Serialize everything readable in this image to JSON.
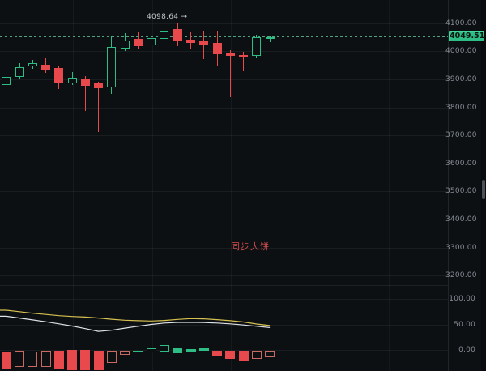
{
  "chart": {
    "annotation": "同步大饼",
    "high_label": "4098.64 →",
    "last_price": "4049.51",
    "price_axis_ticks": [
      "4100.00",
      "4000.00",
      "3900.00",
      "3800.00",
      "3700.00",
      "3600.00",
      "3500.00",
      "3400.00",
      "3300.00",
      "3200.00"
    ],
    "volume_axis_ticks": [
      "100.00",
      "50.00",
      "0.00"
    ],
    "colors": {
      "background": "#0d1013",
      "up": "#2ebd85",
      "down": "#e8494d",
      "ma_fast": "#d6c150",
      "ma_slow": "#dfe2e6",
      "annotation_text": "#d14c4c",
      "axis_text": "#878d96",
      "badge_bg": "#2ebd85",
      "last_price_line": "#55aa87"
    }
  },
  "chart_data": {
    "type": "candlestick",
    "title": "",
    "last_price": 4049.51,
    "high_label_value": 4098.64,
    "high_label_candle_index": 13,
    "price_axis": {
      "visible_ticks": [
        4100,
        4000,
        3900,
        3800,
        3700,
        3600,
        3500,
        3400,
        3300,
        3200
      ],
      "grid": true
    },
    "volume_axis": {
      "visible_ticks": [
        100,
        50,
        0
      ],
      "grid": true
    },
    "candles": [
      {
        "o": 3879.5,
        "h": 3914.1,
        "l": 3876.6,
        "c": 3908.4
      },
      {
        "o": 3908.4,
        "h": 3957.5,
        "l": 3902.6,
        "c": 3943.9
      },
      {
        "o": 3946.8,
        "h": 3969.1,
        "l": 3937.3,
        "c": 3956.6
      },
      {
        "o": 3951.7,
        "h": 3975.7,
        "l": 3922.8,
        "c": 3934.4
      },
      {
        "o": 3940.2,
        "h": 3945.9,
        "l": 3865.0,
        "c": 3884.4
      },
      {
        "o": 3886.1,
        "h": 3924.8,
        "l": 3879.5,
        "c": 3905.5
      },
      {
        "o": 3903.5,
        "h": 3911.3,
        "l": 3787.9,
        "c": 3877.4
      },
      {
        "o": 3886.1,
        "h": 3891.0,
        "l": 3711.0,
        "c": 3867.0
      },
      {
        "o": 3869.9,
        "h": 4052.9,
        "l": 3848.5,
        "c": 4014.4
      },
      {
        "o": 4009.5,
        "h": 4064.4,
        "l": 4000.0,
        "c": 4038.4
      },
      {
        "o": 4045.1,
        "h": 4067.3,
        "l": 4009.5,
        "c": 4019.1
      },
      {
        "o": 4021.1,
        "h": 4096.2,
        "l": 4000.0,
        "c": 4046.2
      },
      {
        "o": 4044.2,
        "h": 4093.3,
        "l": 4032.6,
        "c": 4073.1
      },
      {
        "o": 4078.9,
        "h": 4098.64,
        "l": 4018.2,
        "c": 4035.5
      },
      {
        "o": 4041.3,
        "h": 4067.3,
        "l": 4007.5,
        "c": 4028.9
      },
      {
        "o": 4038.4,
        "h": 4073.1,
        "l": 3972.0,
        "c": 4024.0
      },
      {
        "o": 4028.9,
        "h": 4072.2,
        "l": 3946.8,
        "c": 3990.2
      },
      {
        "o": 3995.1,
        "h": 4004.6,
        "l": 3836.1,
        "c": 3982.7
      },
      {
        "o": 3987.3,
        "h": 3997.1,
        "l": 3927.7,
        "c": 3980.6
      },
      {
        "o": 3982.7,
        "h": 4057.8,
        "l": 3975.8,
        "c": 4050.0
      },
      {
        "o": 4046.2,
        "h": 4052.9,
        "l": 4033.5,
        "c": 4049.51
      }
    ],
    "histogram": [
      {
        "hi": -3,
        "lo": -36,
        "dir": "down",
        "fill": "solid"
      },
      {
        "hi": -2,
        "lo": -34,
        "dir": "down",
        "fill": "hollow"
      },
      {
        "hi": -3,
        "lo": -33,
        "dir": "down",
        "fill": "hollow"
      },
      {
        "hi": -2,
        "lo": -33,
        "dir": "down",
        "fill": "hollow"
      },
      {
        "hi": -2,
        "lo": -37,
        "dir": "down",
        "fill": "solid"
      },
      {
        "hi": 0,
        "lo": -39,
        "dir": "down",
        "fill": "solid"
      },
      {
        "hi": 0,
        "lo": -40,
        "dir": "down",
        "fill": "solid"
      },
      {
        "hi": -2,
        "lo": -40,
        "dir": "down",
        "fill": "solid"
      },
      {
        "hi": -2,
        "lo": -25,
        "dir": "down",
        "fill": "hollow"
      },
      {
        "hi": -1,
        "lo": -10,
        "dir": "down",
        "fill": "hollow"
      },
      {
        "hi": -1,
        "lo": -4,
        "dir": "up",
        "fill": "solid"
      },
      {
        "hi": 3,
        "lo": -5,
        "dir": "up",
        "fill": "hollow"
      },
      {
        "hi": 9,
        "lo": -3,
        "dir": "up",
        "fill": "hollow"
      },
      {
        "hi": 5,
        "lo": -6,
        "dir": "up",
        "fill": "solid"
      },
      {
        "hi": 2,
        "lo": -5,
        "dir": "up",
        "fill": "solid"
      },
      {
        "hi": 3,
        "lo": -2,
        "dir": "up",
        "fill": "solid"
      },
      {
        "hi": -1,
        "lo": -11,
        "dir": "down",
        "fill": "solid"
      },
      {
        "hi": -1,
        "lo": -18,
        "dir": "down",
        "fill": "solid"
      },
      {
        "hi": -1,
        "lo": -23,
        "dir": "down",
        "fill": "solid"
      },
      {
        "hi": -1,
        "lo": -17,
        "dir": "down",
        "fill": "hollow"
      },
      {
        "hi": -1,
        "lo": -14,
        "dir": "down",
        "fill": "hollow"
      }
    ],
    "ma_lines": [
      {
        "name": "ma-fast",
        "color": "#d6c150",
        "values": [
          77.7,
          75.0,
          71.9,
          69.5,
          67.2,
          65.6,
          64.5,
          62.5,
          60.2,
          58.3,
          57.3,
          56.7,
          57.8,
          59.8,
          61.4,
          60.9,
          59.4,
          57.3,
          54.7,
          50.8,
          47.7
        ]
      },
      {
        "name": "ma-slow",
        "color": "#dfe2e6",
        "values": [
          66.1,
          62.5,
          58.9,
          55.2,
          51.1,
          46.9,
          41.7,
          36.4,
          38.6,
          42.7,
          46.4,
          50.0,
          52.7,
          53.9,
          54.2,
          53.6,
          52.7,
          51.1,
          48.9,
          46.4,
          43.8
        ]
      }
    ]
  }
}
